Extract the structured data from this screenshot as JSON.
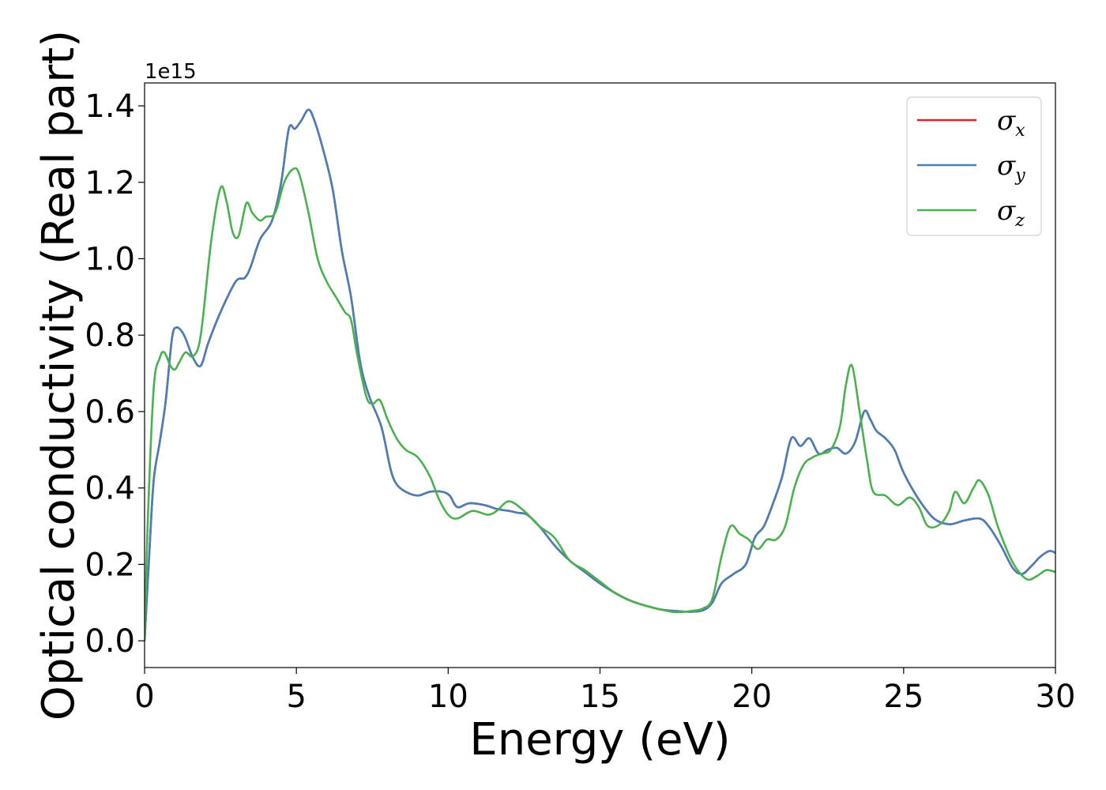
{
  "chart_data": {
    "type": "line",
    "xlabel": "Energy (eV)",
    "ylabel": "Optical conductivity (Real part)",
    "y_offset_text": "1e15",
    "xlim": [
      0,
      30
    ],
    "ylim": [
      -0.07,
      1.46
    ],
    "xticks": [
      0,
      5,
      10,
      15,
      20,
      25,
      30
    ],
    "xtick_labels": [
      "0",
      "5",
      "10",
      "15",
      "20",
      "25",
      "30"
    ],
    "yticks": [
      0.0,
      0.2,
      0.4,
      0.6,
      0.8,
      1.0,
      1.2,
      1.4
    ],
    "ytick_labels": [
      "0.0",
      "0.2",
      "0.4",
      "0.6",
      "0.8",
      "1.0",
      "1.2",
      "1.4"
    ],
    "grid": false,
    "legend_position": "top-right",
    "legend": [
      {
        "sym": "σ",
        "sub": "x",
        "color": "#d62728"
      },
      {
        "sym": "σ",
        "sub": "y",
        "color": "#4a7fb5"
      },
      {
        "sym": "σ",
        "sub": "z",
        "color": "#4caf50"
      }
    ],
    "series": [
      {
        "name": "σx",
        "color": "#d62728",
        "points": [
          [
            0,
            0
          ],
          [
            0.15,
            0.22
          ],
          [
            0.3,
            0.42
          ],
          [
            0.5,
            0.52
          ],
          [
            0.7,
            0.63
          ],
          [
            0.9,
            0.79
          ],
          [
            1.05,
            0.82
          ],
          [
            1.3,
            0.8
          ],
          [
            1.6,
            0.74
          ],
          [
            1.85,
            0.72
          ],
          [
            2.1,
            0.78
          ],
          [
            2.5,
            0.86
          ],
          [
            3.0,
            0.94
          ],
          [
            3.3,
            0.95
          ],
          [
            3.5,
            0.98
          ],
          [
            3.8,
            1.05
          ],
          [
            4.2,
            1.1
          ],
          [
            4.5,
            1.2
          ],
          [
            4.75,
            1.34
          ],
          [
            4.95,
            1.34
          ],
          [
            5.15,
            1.36
          ],
          [
            5.4,
            1.39
          ],
          [
            5.6,
            1.36
          ],
          [
            5.9,
            1.28
          ],
          [
            6.2,
            1.18
          ],
          [
            6.5,
            1.02
          ],
          [
            6.8,
            0.9
          ],
          [
            7.1,
            0.73
          ],
          [
            7.4,
            0.64
          ],
          [
            7.8,
            0.56
          ],
          [
            8.1,
            0.45
          ],
          [
            8.3,
            0.41
          ],
          [
            8.6,
            0.39
          ],
          [
            9.0,
            0.38
          ],
          [
            9.4,
            0.39
          ],
          [
            9.8,
            0.39
          ],
          [
            10.05,
            0.38
          ],
          [
            10.3,
            0.35
          ],
          [
            10.7,
            0.36
          ],
          [
            11.2,
            0.355
          ],
          [
            11.6,
            0.345
          ],
          [
            12.0,
            0.34
          ],
          [
            12.3,
            0.335
          ],
          [
            12.6,
            0.33
          ],
          [
            13.0,
            0.3
          ],
          [
            13.5,
            0.25
          ],
          [
            14.0,
            0.21
          ],
          [
            14.5,
            0.18
          ],
          [
            15.0,
            0.15
          ],
          [
            15.5,
            0.125
          ],
          [
            16.0,
            0.105
          ],
          [
            16.5,
            0.092
          ],
          [
            17.0,
            0.082
          ],
          [
            17.5,
            0.078
          ],
          [
            18.0,
            0.076
          ],
          [
            18.4,
            0.08
          ],
          [
            18.7,
            0.1
          ],
          [
            19.0,
            0.15
          ],
          [
            19.4,
            0.175
          ],
          [
            19.8,
            0.2
          ],
          [
            20.1,
            0.27
          ],
          [
            20.4,
            0.3
          ],
          [
            20.7,
            0.36
          ],
          [
            21.0,
            0.43
          ],
          [
            21.3,
            0.53
          ],
          [
            21.6,
            0.51
          ],
          [
            21.9,
            0.53
          ],
          [
            22.2,
            0.49
          ],
          [
            22.5,
            0.5
          ],
          [
            22.8,
            0.505
          ],
          [
            23.1,
            0.49
          ],
          [
            23.4,
            0.52
          ],
          [
            23.7,
            0.6
          ],
          [
            23.9,
            0.58
          ],
          [
            24.1,
            0.55
          ],
          [
            24.4,
            0.53
          ],
          [
            24.7,
            0.5
          ],
          [
            25.0,
            0.44
          ],
          [
            25.5,
            0.37
          ],
          [
            26.0,
            0.32
          ],
          [
            26.5,
            0.305
          ],
          [
            27.0,
            0.315
          ],
          [
            27.5,
            0.32
          ],
          [
            27.8,
            0.3
          ],
          [
            28.2,
            0.25
          ],
          [
            28.6,
            0.19
          ],
          [
            28.9,
            0.175
          ],
          [
            29.2,
            0.195
          ],
          [
            29.5,
            0.22
          ],
          [
            29.8,
            0.235
          ],
          [
            30.0,
            0.23
          ]
        ]
      },
      {
        "name": "σy",
        "color": "#4a7fb5",
        "points": [
          [
            0,
            0
          ],
          [
            0.15,
            0.22
          ],
          [
            0.3,
            0.42
          ],
          [
            0.5,
            0.52
          ],
          [
            0.7,
            0.63
          ],
          [
            0.9,
            0.79
          ],
          [
            1.05,
            0.82
          ],
          [
            1.3,
            0.8
          ],
          [
            1.6,
            0.74
          ],
          [
            1.85,
            0.72
          ],
          [
            2.1,
            0.78
          ],
          [
            2.5,
            0.86
          ],
          [
            3.0,
            0.94
          ],
          [
            3.3,
            0.95
          ],
          [
            3.5,
            0.98
          ],
          [
            3.8,
            1.05
          ],
          [
            4.2,
            1.1
          ],
          [
            4.5,
            1.2
          ],
          [
            4.75,
            1.34
          ],
          [
            4.95,
            1.34
          ],
          [
            5.15,
            1.36
          ],
          [
            5.4,
            1.39
          ],
          [
            5.6,
            1.36
          ],
          [
            5.9,
            1.28
          ],
          [
            6.2,
            1.18
          ],
          [
            6.5,
            1.02
          ],
          [
            6.8,
            0.9
          ],
          [
            7.1,
            0.73
          ],
          [
            7.4,
            0.64
          ],
          [
            7.8,
            0.56
          ],
          [
            8.1,
            0.45
          ],
          [
            8.3,
            0.41
          ],
          [
            8.6,
            0.39
          ],
          [
            9.0,
            0.38
          ],
          [
            9.4,
            0.39
          ],
          [
            9.8,
            0.39
          ],
          [
            10.05,
            0.38
          ],
          [
            10.3,
            0.35
          ],
          [
            10.7,
            0.36
          ],
          [
            11.2,
            0.355
          ],
          [
            11.6,
            0.345
          ],
          [
            12.0,
            0.34
          ],
          [
            12.3,
            0.335
          ],
          [
            12.6,
            0.33
          ],
          [
            13.0,
            0.3
          ],
          [
            13.5,
            0.25
          ],
          [
            14.0,
            0.21
          ],
          [
            14.5,
            0.18
          ],
          [
            15.0,
            0.15
          ],
          [
            15.5,
            0.125
          ],
          [
            16.0,
            0.105
          ],
          [
            16.5,
            0.092
          ],
          [
            17.0,
            0.082
          ],
          [
            17.5,
            0.078
          ],
          [
            18.0,
            0.076
          ],
          [
            18.4,
            0.08
          ],
          [
            18.7,
            0.1
          ],
          [
            19.0,
            0.15
          ],
          [
            19.4,
            0.175
          ],
          [
            19.8,
            0.2
          ],
          [
            20.1,
            0.27
          ],
          [
            20.4,
            0.3
          ],
          [
            20.7,
            0.36
          ],
          [
            21.0,
            0.43
          ],
          [
            21.3,
            0.53
          ],
          [
            21.6,
            0.51
          ],
          [
            21.9,
            0.53
          ],
          [
            22.2,
            0.49
          ],
          [
            22.5,
            0.5
          ],
          [
            22.8,
            0.505
          ],
          [
            23.1,
            0.49
          ],
          [
            23.4,
            0.52
          ],
          [
            23.7,
            0.6
          ],
          [
            23.9,
            0.58
          ],
          [
            24.1,
            0.55
          ],
          [
            24.4,
            0.53
          ],
          [
            24.7,
            0.5
          ],
          [
            25.0,
            0.44
          ],
          [
            25.5,
            0.37
          ],
          [
            26.0,
            0.32
          ],
          [
            26.5,
            0.305
          ],
          [
            27.0,
            0.315
          ],
          [
            27.5,
            0.32
          ],
          [
            27.8,
            0.3
          ],
          [
            28.2,
            0.25
          ],
          [
            28.6,
            0.19
          ],
          [
            28.9,
            0.175
          ],
          [
            29.2,
            0.195
          ],
          [
            29.5,
            0.22
          ],
          [
            29.8,
            0.235
          ],
          [
            30.0,
            0.23
          ]
        ]
      },
      {
        "name": "σz",
        "color": "#4caf50",
        "points": [
          [
            0,
            0
          ],
          [
            0.1,
            0.3
          ],
          [
            0.3,
            0.66
          ],
          [
            0.5,
            0.74
          ],
          [
            0.65,
            0.755
          ],
          [
            0.85,
            0.72
          ],
          [
            1.0,
            0.71
          ],
          [
            1.15,
            0.73
          ],
          [
            1.35,
            0.755
          ],
          [
            1.6,
            0.745
          ],
          [
            1.85,
            0.8
          ],
          [
            2.2,
            1.05
          ],
          [
            2.5,
            1.185
          ],
          [
            2.7,
            1.15
          ],
          [
            2.9,
            1.07
          ],
          [
            3.1,
            1.06
          ],
          [
            3.35,
            1.145
          ],
          [
            3.55,
            1.12
          ],
          [
            3.8,
            1.1
          ],
          [
            4.0,
            1.11
          ],
          [
            4.3,
            1.12
          ],
          [
            4.6,
            1.2
          ],
          [
            4.9,
            1.235
          ],
          [
            5.1,
            1.22
          ],
          [
            5.4,
            1.12
          ],
          [
            5.7,
            1.0
          ],
          [
            6.0,
            0.94
          ],
          [
            6.3,
            0.9
          ],
          [
            6.6,
            0.86
          ],
          [
            6.8,
            0.84
          ],
          [
            7.0,
            0.75
          ],
          [
            7.3,
            0.64
          ],
          [
            7.5,
            0.62
          ],
          [
            7.75,
            0.63
          ],
          [
            8.0,
            0.58
          ],
          [
            8.3,
            0.53
          ],
          [
            8.6,
            0.5
          ],
          [
            9.0,
            0.48
          ],
          [
            9.4,
            0.43
          ],
          [
            9.7,
            0.37
          ],
          [
            10.0,
            0.33
          ],
          [
            10.3,
            0.32
          ],
          [
            10.8,
            0.34
          ],
          [
            11.3,
            0.33
          ],
          [
            11.6,
            0.34
          ],
          [
            12.0,
            0.365
          ],
          [
            12.5,
            0.34
          ],
          [
            13.0,
            0.3
          ],
          [
            13.5,
            0.27
          ],
          [
            14.0,
            0.21
          ],
          [
            14.5,
            0.185
          ],
          [
            15.0,
            0.155
          ],
          [
            15.5,
            0.125
          ],
          [
            16.0,
            0.105
          ],
          [
            16.5,
            0.092
          ],
          [
            17.0,
            0.082
          ],
          [
            17.5,
            0.075
          ],
          [
            18.0,
            0.078
          ],
          [
            18.4,
            0.085
          ],
          [
            18.7,
            0.11
          ],
          [
            19.0,
            0.22
          ],
          [
            19.3,
            0.3
          ],
          [
            19.6,
            0.28
          ],
          [
            19.9,
            0.265
          ],
          [
            20.2,
            0.24
          ],
          [
            20.5,
            0.265
          ],
          [
            20.8,
            0.265
          ],
          [
            21.1,
            0.3
          ],
          [
            21.4,
            0.4
          ],
          [
            21.7,
            0.46
          ],
          [
            22.0,
            0.48
          ],
          [
            22.3,
            0.49
          ],
          [
            22.6,
            0.5
          ],
          [
            22.9,
            0.56
          ],
          [
            23.1,
            0.67
          ],
          [
            23.3,
            0.72
          ],
          [
            23.55,
            0.6
          ],
          [
            23.8,
            0.47
          ],
          [
            24.0,
            0.39
          ],
          [
            24.4,
            0.38
          ],
          [
            24.8,
            0.355
          ],
          [
            25.2,
            0.375
          ],
          [
            25.5,
            0.35
          ],
          [
            25.8,
            0.3
          ],
          [
            26.2,
            0.305
          ],
          [
            26.5,
            0.34
          ],
          [
            26.7,
            0.39
          ],
          [
            27.0,
            0.36
          ],
          [
            27.3,
            0.4
          ],
          [
            27.5,
            0.42
          ],
          [
            27.8,
            0.38
          ],
          [
            28.1,
            0.3
          ],
          [
            28.5,
            0.22
          ],
          [
            28.8,
            0.18
          ],
          [
            29.1,
            0.16
          ],
          [
            29.4,
            0.17
          ],
          [
            29.7,
            0.185
          ],
          [
            30.0,
            0.18
          ]
        ]
      }
    ]
  }
}
